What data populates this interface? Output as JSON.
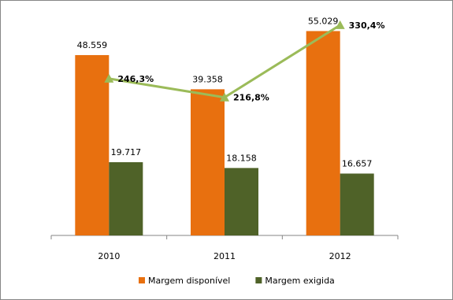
{
  "chart_data": {
    "type": "bar",
    "categories": [
      "2010",
      "2011",
      "2012"
    ],
    "series": [
      {
        "name": "Margem disponível",
        "color": "#e8700f",
        "values": [
          48559,
          39358,
          55029
        ],
        "value_labels": [
          "48.559",
          "39.358",
          "55.029"
        ]
      },
      {
        "name": "Margem exigida",
        "color": "#4f6228",
        "values": [
          19717,
          18158,
          16657
        ],
        "value_labels": [
          "19.717",
          "18.158",
          "16.657"
        ]
      },
      {
        "type": "line",
        "axis": "y2",
        "color": "#9bbb59",
        "values": [
          246.3,
          216.8,
          330.4
        ],
        "value_labels": [
          "246,3%",
          "216,8%",
          "330,4%"
        ]
      }
    ],
    "ylim": [
      0,
      60000
    ],
    "y2lim": [
      0,
      350
    ],
    "legend": "bottom"
  }
}
